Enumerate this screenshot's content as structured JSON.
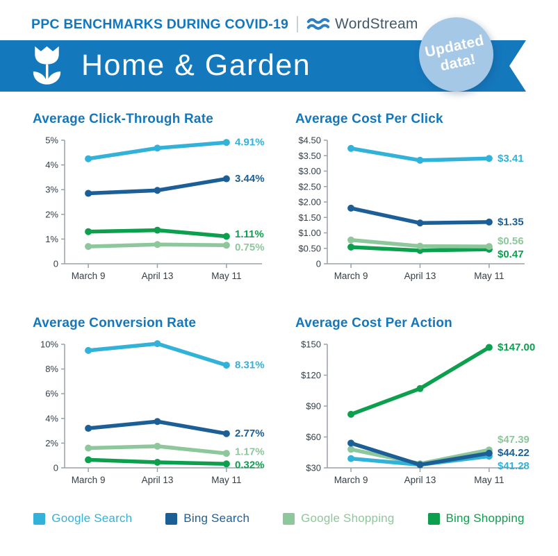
{
  "header": {
    "kicker": "PPC BENCHMARKS DURING COVID-19",
    "brand": "WordStream"
  },
  "banner": {
    "title": "Home & Garden",
    "badge": [
      "Updated",
      "data!"
    ]
  },
  "colors": {
    "header_blue": "#1377bd",
    "banner_blue": "#1478bd",
    "badge_blue": "#a5c8e7",
    "brand_text": "#42586b",
    "waves_blue": "#2d7ec3",
    "axis": "#98a1a8",
    "tick_text": "#333e48",
    "google_search": "#32b2d9",
    "bing_search": "#1c5f96",
    "google_shopping": "#8dc79b",
    "bing_shopping": "#0ca04e"
  },
  "legend": [
    {
      "label": "Google Search",
      "color_key": "google_search"
    },
    {
      "label": "Bing Search",
      "color_key": "bing_search"
    },
    {
      "label": "Google Shopping",
      "color_key": "google_shopping"
    },
    {
      "label": "Bing Shopping",
      "color_key": "bing_shopping"
    }
  ],
  "chart_data": [
    {
      "id": "average-click-through-rate",
      "type": "line",
      "title": "Average Click-Through Rate",
      "x": [
        "March 9",
        "April 13",
        "May 11"
      ],
      "y_axis": {
        "ticks": [
          {
            "label": "5%",
            "value": 5
          },
          {
            "label": "4%",
            "value": 4
          },
          {
            "label": "3%",
            "value": 3
          },
          {
            "label": "2%",
            "value": 2
          },
          {
            "label": "1%",
            "value": 1
          },
          {
            "label": "0",
            "value": 0
          }
        ]
      },
      "series": [
        {
          "name": "Google Shopping",
          "color_key": "google_shopping",
          "values": [
            0.7,
            0.78,
            0.75
          ],
          "end_label": "0.75%"
        },
        {
          "name": "Bing Shopping",
          "color_key": "bing_shopping",
          "values": [
            1.3,
            1.36,
            1.11
          ],
          "end_label": "1.11%"
        },
        {
          "name": "Bing Search",
          "color_key": "bing_search",
          "values": [
            2.85,
            2.97,
            3.44
          ],
          "end_label": "3.44%"
        },
        {
          "name": "Google Search",
          "color_key": "google_search",
          "values": [
            4.25,
            4.68,
            4.91
          ],
          "end_label": "4.91%"
        }
      ]
    },
    {
      "id": "average-cost-per-click",
      "type": "line",
      "title": "Average Cost Per Click",
      "x": [
        "March 9",
        "April 13",
        "May 11"
      ],
      "y_axis": {
        "ticks": [
          {
            "label": "$4.50",
            "value": 4.5
          },
          {
            "label": "$3.50",
            "value": 3.5
          },
          {
            "label": "$3.00",
            "value": 3.0
          },
          {
            "label": "$2.50",
            "value": 2.5
          },
          {
            "label": "$2.00",
            "value": 2.0
          },
          {
            "label": "$1.50",
            "value": 1.5
          },
          {
            "label": "$1.00",
            "value": 1.0
          },
          {
            "label": "$0.50",
            "value": 0.5
          },
          {
            "label": "0",
            "value": 0
          }
        ]
      },
      "series": [
        {
          "name": "Bing Search",
          "color_key": "bing_search",
          "values": [
            1.8,
            1.32,
            1.35
          ],
          "end_label": "$1.35"
        },
        {
          "name": "Bing Shopping",
          "color_key": "bing_shopping",
          "values": [
            0.54,
            0.43,
            0.47
          ],
          "end_label": "$0.47"
        },
        {
          "name": "Google Shopping",
          "color_key": "google_shopping",
          "values": [
            0.77,
            0.57,
            0.56
          ],
          "end_label": "$0.56"
        },
        {
          "name": "Google Search",
          "color_key": "google_search",
          "values": [
            3.97,
            3.35,
            3.41
          ],
          "end_label": "$3.41"
        }
      ]
    },
    {
      "id": "average-conversion-rate",
      "type": "line",
      "title": "Average Conversion Rate",
      "x": [
        "March 9",
        "April 13",
        "May 11"
      ],
      "y_axis": {
        "ticks": [
          {
            "label": "10%",
            "value": 10
          },
          {
            "label": "8%",
            "value": 8
          },
          {
            "label": "6%",
            "value": 6
          },
          {
            "label": "4%",
            "value": 4
          },
          {
            "label": "2%",
            "value": 2
          },
          {
            "label": "0",
            "value": 0
          }
        ]
      },
      "series": [
        {
          "name": "Bing Shopping",
          "color_key": "bing_shopping",
          "values": [
            0.65,
            0.45,
            0.32
          ],
          "end_label": "0.32%"
        },
        {
          "name": "Google Shopping",
          "color_key": "google_shopping",
          "values": [
            1.6,
            1.75,
            1.17
          ],
          "end_label": "1.17%"
        },
        {
          "name": "Bing Search",
          "color_key": "bing_search",
          "values": [
            3.2,
            3.75,
            2.77
          ],
          "end_label": "2.77%"
        },
        {
          "name": "Google Search",
          "color_key": "google_search",
          "values": [
            9.5,
            10.05,
            8.31
          ],
          "end_label": "8.31%"
        }
      ]
    },
    {
      "id": "average-cost-per-action",
      "type": "line",
      "title": "Average Cost Per Action",
      "x": [
        "March 9",
        "April 13",
        "May 11"
      ],
      "y_axis": {
        "ticks": [
          {
            "label": "$150",
            "value": 150
          },
          {
            "label": "$120",
            "value": 120
          },
          {
            "label": "$90",
            "value": 90
          },
          {
            "label": "$60",
            "value": 60
          },
          {
            "label": "$30",
            "value": 30
          }
        ]
      },
      "series": [
        {
          "name": "Google Shopping",
          "color_key": "google_shopping",
          "values": [
            48,
            34,
            47.39
          ],
          "end_label": "$47.39"
        },
        {
          "name": "Google Search",
          "color_key": "google_search",
          "values": [
            39,
            33,
            41.28
          ],
          "end_label": "$41.28"
        },
        {
          "name": "Bing Search",
          "color_key": "bing_search",
          "values": [
            54,
            33,
            44.22
          ],
          "end_label": "$44.22"
        },
        {
          "name": "Bing Shopping",
          "color_key": "bing_shopping",
          "values": [
            82,
            107,
            147.0
          ],
          "end_label": "$147.00"
        }
      ]
    }
  ]
}
